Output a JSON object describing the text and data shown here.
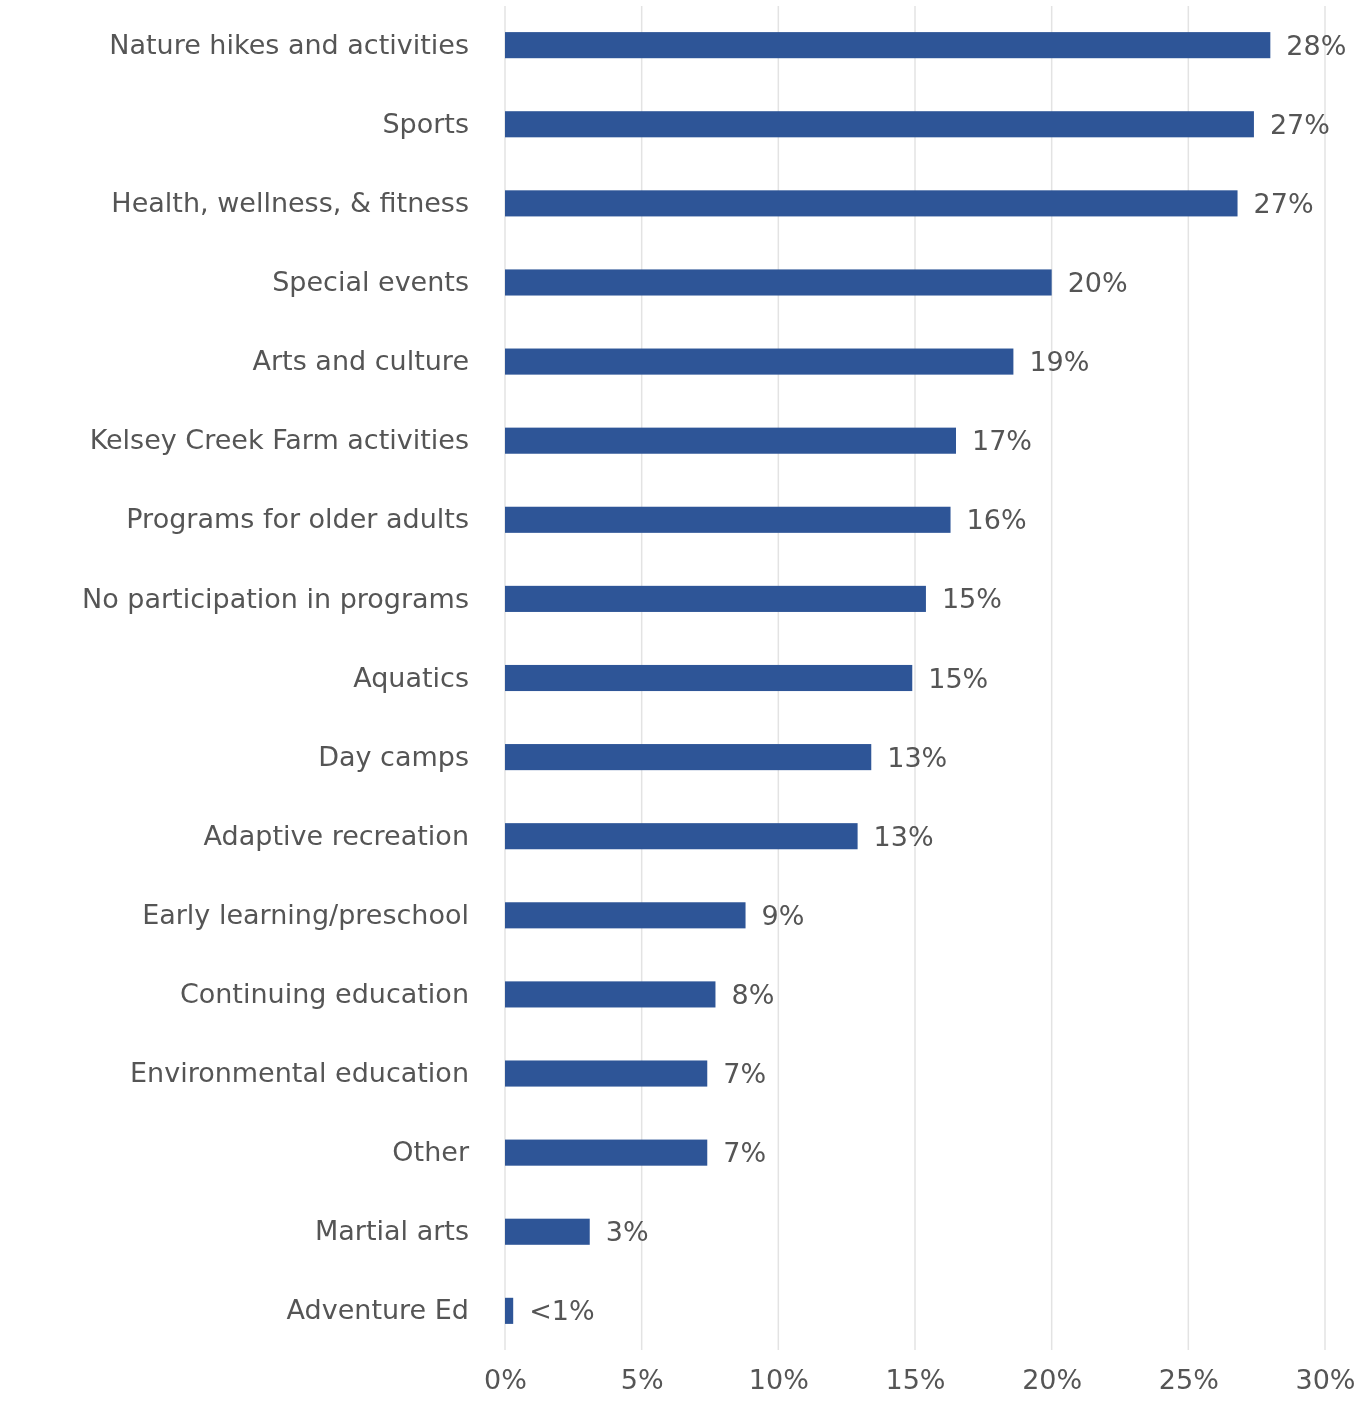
{
  "chart_data": {
    "type": "bar",
    "orientation": "horizontal",
    "categories": [
      "Nature hikes and activities",
      "Sports",
      "Health, wellness, & fitness",
      "Special events",
      "Arts and culture",
      "Kelsey Creek Farm activities",
      "Programs for older adults",
      "No participation in programs",
      "Aquatics",
      "Day camps",
      "Adaptive recreation",
      "Early learning/preschool",
      "Continuing education",
      "Environmental education",
      "Other",
      "Martial arts",
      "Adventure Ed"
    ],
    "values": [
      28.0,
      27.4,
      26.8,
      20.0,
      18.6,
      16.5,
      16.3,
      15.4,
      14.9,
      13.4,
      12.9,
      8.8,
      7.7,
      7.4,
      7.4,
      3.1,
      0.3
    ],
    "value_labels": [
      "28%",
      "27%",
      "27%",
      "20%",
      "19%",
      "17%",
      "16%",
      "15%",
      "15%",
      "13%",
      "13%",
      "9%",
      "8%",
      "7%",
      "7%",
      "3%",
      "<1%"
    ],
    "color": "#2e5597",
    "xlim": [
      0,
      30
    ],
    "xticks": [
      {
        "value": 0,
        "label": "0%"
      },
      {
        "value": 5,
        "label": "5%"
      },
      {
        "value": 10,
        "label": "10%"
      },
      {
        "value": 15,
        "label": "15%"
      },
      {
        "value": 20,
        "label": "20%"
      },
      {
        "value": 25,
        "label": "25%"
      },
      {
        "value": 30,
        "label": "30%"
      }
    ],
    "grid": "x"
  }
}
